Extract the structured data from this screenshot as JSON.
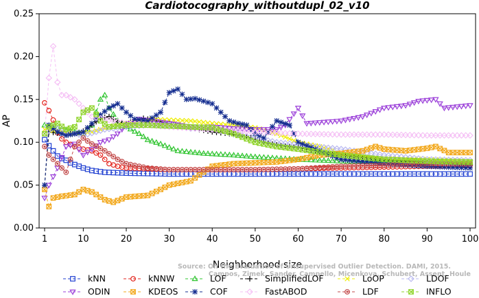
{
  "chart_data": {
    "type": "line",
    "title": "Cardiotocography_withoutdupl_02_v10",
    "xlabel": "Neighborhood size",
    "ylabel": "AP",
    "xlim": [
      1,
      100
    ],
    "ylim": [
      0.0,
      0.25
    ],
    "xticks": [
      1,
      10,
      20,
      30,
      40,
      50,
      60,
      70,
      80,
      90,
      100
    ],
    "yticks": [
      "0.00",
      "0.05",
      "0.10",
      "0.15",
      "0.20",
      "0.25"
    ],
    "grid": false,
    "legend_position": "bottom",
    "watermark": {
      "line1": "Source: On the Evaluation of Unsupervised Outlier Detection. DAMI, 2015.",
      "line2": "Campos, Zimek, Sander, Campello, Micenkova, Schubert, Assent, Houle"
    },
    "series": [
      {
        "name": "kNN",
        "color": "#1f3fd1",
        "marker": "square",
        "dash": "4,3",
        "points": [
          [
            1,
            0.103
          ],
          [
            2,
            0.096
          ],
          [
            3,
            0.09
          ],
          [
            4,
            0.084
          ],
          [
            5,
            0.081
          ],
          [
            6,
            0.079
          ],
          [
            7,
            0.076
          ],
          [
            8,
            0.074
          ],
          [
            10,
            0.07
          ],
          [
            12,
            0.067
          ],
          [
            15,
            0.065
          ],
          [
            20,
            0.064
          ],
          [
            30,
            0.063
          ],
          [
            40,
            0.063
          ],
          [
            50,
            0.063
          ],
          [
            60,
            0.063
          ],
          [
            70,
            0.063
          ],
          [
            80,
            0.063
          ],
          [
            90,
            0.063
          ],
          [
            100,
            0.063
          ]
        ]
      },
      {
        "name": "kNNW",
        "color": "#e3231c",
        "marker": "circle",
        "dash": "4,3",
        "points": [
          [
            1,
            0.146
          ],
          [
            2,
            0.137
          ],
          [
            3,
            0.126
          ],
          [
            4,
            0.111
          ],
          [
            5,
            0.104
          ],
          [
            6,
            0.1
          ],
          [
            8,
            0.095
          ],
          [
            10,
            0.092
          ],
          [
            12,
            0.09
          ],
          [
            14,
            0.085
          ],
          [
            16,
            0.075
          ],
          [
            18,
            0.072
          ],
          [
            20,
            0.07
          ],
          [
            25,
            0.069
          ],
          [
            30,
            0.068
          ],
          [
            40,
            0.068
          ],
          [
            50,
            0.068
          ],
          [
            60,
            0.069
          ],
          [
            70,
            0.07
          ],
          [
            80,
            0.071
          ],
          [
            90,
            0.072
          ],
          [
            100,
            0.073
          ]
        ]
      },
      {
        "name": "LOF",
        "color": "#2ec42e",
        "marker": "triangle-up",
        "dash": "4,3",
        "points": [
          [
            1,
            0.12
          ],
          [
            3,
            0.118
          ],
          [
            5,
            0.115
          ],
          [
            8,
            0.112
          ],
          [
            10,
            0.11
          ],
          [
            12,
            0.12
          ],
          [
            14,
            0.15
          ],
          [
            15,
            0.155
          ],
          [
            16,
            0.14
          ],
          [
            18,
            0.125
          ],
          [
            20,
            0.118
          ],
          [
            23,
            0.11
          ],
          [
            25,
            0.103
          ],
          [
            28,
            0.098
          ],
          [
            32,
            0.09
          ],
          [
            38,
            0.087
          ],
          [
            45,
            0.085
          ],
          [
            50,
            0.083
          ],
          [
            60,
            0.08
          ],
          [
            70,
            0.078
          ],
          [
            80,
            0.077
          ],
          [
            90,
            0.077
          ],
          [
            100,
            0.076
          ]
        ]
      },
      {
        "name": "SimplifiedLOF",
        "color": "#000000",
        "marker": "plus",
        "dash": "4,3",
        "points": [
          [
            1,
            0.05
          ],
          [
            2,
            0.112
          ],
          [
            5,
            0.11
          ],
          [
            8,
            0.11
          ],
          [
            10,
            0.113
          ],
          [
            12,
            0.12
          ],
          [
            14,
            0.128
          ],
          [
            16,
            0.13
          ],
          [
            18,
            0.124
          ],
          [
            20,
            0.122
          ],
          [
            24,
            0.128
          ],
          [
            28,
            0.124
          ],
          [
            32,
            0.12
          ],
          [
            36,
            0.116
          ],
          [
            40,
            0.112
          ],
          [
            44,
            0.11
          ],
          [
            48,
            0.107
          ],
          [
            52,
            0.1
          ],
          [
            56,
            0.096
          ],
          [
            60,
            0.094
          ],
          [
            64,
            0.09
          ],
          [
            70,
            0.085
          ],
          [
            80,
            0.08
          ],
          [
            90,
            0.077
          ],
          [
            100,
            0.075
          ]
        ]
      },
      {
        "name": "LoOP",
        "color": "#eeee00",
        "marker": "cross",
        "dash": "4,3",
        "points": [
          [
            1,
            0.115
          ],
          [
            4,
            0.113
          ],
          [
            8,
            0.11
          ],
          [
            12,
            0.112
          ],
          [
            16,
            0.118
          ],
          [
            20,
            0.122
          ],
          [
            26,
            0.127
          ],
          [
            30,
            0.126
          ],
          [
            35,
            0.125
          ],
          [
            40,
            0.122
          ],
          [
            45,
            0.12
          ],
          [
            50,
            0.117
          ],
          [
            55,
            0.11
          ],
          [
            60,
            0.1
          ],
          [
            65,
            0.095
          ],
          [
            70,
            0.088
          ],
          [
            80,
            0.082
          ],
          [
            90,
            0.08
          ],
          [
            100,
            0.078
          ]
        ]
      },
      {
        "name": "LDOF",
        "color": "#b8b8f0",
        "marker": "diamond",
        "dash": "4,3",
        "points": [
          [
            1,
            0.11
          ],
          [
            3,
            0.118
          ],
          [
            6,
            0.112
          ],
          [
            10,
            0.108
          ],
          [
            15,
            0.115
          ],
          [
            20,
            0.118
          ],
          [
            25,
            0.12
          ],
          [
            30,
            0.12
          ],
          [
            35,
            0.116
          ],
          [
            40,
            0.116
          ],
          [
            45,
            0.11
          ],
          [
            50,
            0.105
          ],
          [
            55,
            0.1
          ],
          [
            60,
            0.097
          ],
          [
            70,
            0.092
          ],
          [
            80,
            0.085
          ],
          [
            90,
            0.08
          ],
          [
            100,
            0.079
          ]
        ]
      },
      {
        "name": "ODIN",
        "color": "#9b3fd9",
        "marker": "triangle-down",
        "dash": "4,3",
        "points": [
          [
            1,
            0.035
          ],
          [
            2,
            0.05
          ],
          [
            4,
            0.07
          ],
          [
            6,
            0.095
          ],
          [
            8,
            0.098
          ],
          [
            10,
            0.085
          ],
          [
            12,
            0.092
          ],
          [
            14,
            0.1
          ],
          [
            16,
            0.103
          ],
          [
            18,
            0.11
          ],
          [
            20,
            0.12
          ],
          [
            23,
            0.127
          ],
          [
            26,
            0.125
          ],
          [
            30,
            0.122
          ],
          [
            35,
            0.118
          ],
          [
            40,
            0.118
          ],
          [
            45,
            0.116
          ],
          [
            50,
            0.115
          ],
          [
            55,
            0.115
          ],
          [
            57,
            0.12
          ],
          [
            60,
            0.14
          ],
          [
            62,
            0.122
          ],
          [
            70,
            0.125
          ],
          [
            75,
            0.13
          ],
          [
            80,
            0.14
          ],
          [
            85,
            0.143
          ],
          [
            88,
            0.148
          ],
          [
            92,
            0.15
          ],
          [
            94,
            0.14
          ],
          [
            100,
            0.143
          ]
        ]
      },
      {
        "name": "KDEOS",
        "color": "#f2a81c",
        "marker": "square-x",
        "dash": "4,3",
        "points": [
          [
            1,
            0.045
          ],
          [
            2,
            0.025
          ],
          [
            3,
            0.035
          ],
          [
            5,
            0.037
          ],
          [
            8,
            0.039
          ],
          [
            10,
            0.045
          ],
          [
            12,
            0.042
          ],
          [
            15,
            0.033
          ],
          [
            17,
            0.03
          ],
          [
            20,
            0.036
          ],
          [
            25,
            0.038
          ],
          [
            28,
            0.045
          ],
          [
            30,
            0.05
          ],
          [
            35,
            0.055
          ],
          [
            40,
            0.072
          ],
          [
            45,
            0.075
          ],
          [
            50,
            0.076
          ],
          [
            55,
            0.077
          ],
          [
            60,
            0.08
          ],
          [
            65,
            0.085
          ],
          [
            70,
            0.087
          ],
          [
            75,
            0.09
          ],
          [
            78,
            0.095
          ],
          [
            80,
            0.092
          ],
          [
            85,
            0.09
          ],
          [
            90,
            0.093
          ],
          [
            92,
            0.095
          ],
          [
            95,
            0.088
          ],
          [
            100,
            0.088
          ]
        ]
      },
      {
        "name": "COF",
        "color": "#132c8f",
        "marker": "star",
        "dash": "4,3",
        "points": [
          [
            1,
            0.05
          ],
          [
            2,
            0.12
          ],
          [
            4,
            0.112
          ],
          [
            6,
            0.108
          ],
          [
            8,
            0.11
          ],
          [
            10,
            0.112
          ],
          [
            12,
            0.122
          ],
          [
            14,
            0.132
          ],
          [
            16,
            0.14
          ],
          [
            18,
            0.145
          ],
          [
            20,
            0.135
          ],
          [
            22,
            0.127
          ],
          [
            25,
            0.125
          ],
          [
            28,
            0.135
          ],
          [
            30,
            0.158
          ],
          [
            32,
            0.162
          ],
          [
            34,
            0.15
          ],
          [
            36,
            0.151
          ],
          [
            40,
            0.145
          ],
          [
            42,
            0.135
          ],
          [
            44,
            0.125
          ],
          [
            46,
            0.122
          ],
          [
            48,
            0.12
          ],
          [
            50,
            0.11
          ],
          [
            52,
            0.105
          ],
          [
            55,
            0.125
          ],
          [
            58,
            0.12
          ],
          [
            60,
            0.1
          ],
          [
            65,
            0.09
          ],
          [
            70,
            0.08
          ],
          [
            80,
            0.075
          ],
          [
            90,
            0.072
          ],
          [
            100,
            0.07
          ]
        ]
      },
      {
        "name": "FastABOD",
        "color": "#f5c0f5",
        "marker": "diamond",
        "dash": "4,3",
        "points": [
          [
            1,
            0.11
          ],
          [
            2,
            0.175
          ],
          [
            3,
            0.212
          ],
          [
            4,
            0.17
          ],
          [
            5,
            0.155
          ],
          [
            6,
            0.155
          ],
          [
            8,
            0.15
          ],
          [
            10,
            0.14
          ],
          [
            12,
            0.13
          ],
          [
            15,
            0.127
          ],
          [
            20,
            0.122
          ],
          [
            25,
            0.12
          ],
          [
            30,
            0.118
          ],
          [
            40,
            0.115
          ],
          [
            50,
            0.112
          ],
          [
            60,
            0.11
          ],
          [
            70,
            0.109
          ],
          [
            80,
            0.109
          ],
          [
            90,
            0.108
          ],
          [
            100,
            0.108
          ]
        ]
      },
      {
        "name": "LDF",
        "color": "#c24a4a",
        "marker": "circle-dot",
        "dash": "4,3",
        "points": [
          [
            1,
            0.095
          ],
          [
            2,
            0.085
          ],
          [
            4,
            0.075
          ],
          [
            6,
            0.065
          ],
          [
            8,
            0.095
          ],
          [
            10,
            0.105
          ],
          [
            12,
            0.098
          ],
          [
            15,
            0.09
          ],
          [
            18,
            0.08
          ],
          [
            20,
            0.075
          ],
          [
            25,
            0.07
          ],
          [
            30,
            0.068
          ],
          [
            40,
            0.068
          ],
          [
            50,
            0.068
          ],
          [
            60,
            0.069
          ],
          [
            70,
            0.072
          ],
          [
            80,
            0.073
          ],
          [
            90,
            0.075
          ],
          [
            100,
            0.075
          ]
        ]
      },
      {
        "name": "INFLO",
        "color": "#8fd42a",
        "marker": "square-x",
        "dash": "4,3",
        "points": [
          [
            1,
            0.11
          ],
          [
            2,
            0.118
          ],
          [
            4,
            0.122
          ],
          [
            6,
            0.115
          ],
          [
            8,
            0.118
          ],
          [
            10,
            0.135
          ],
          [
            12,
            0.14
          ],
          [
            14,
            0.125
          ],
          [
            16,
            0.118
          ],
          [
            20,
            0.12
          ],
          [
            25,
            0.12
          ],
          [
            30,
            0.119
          ],
          [
            35,
            0.118
          ],
          [
            40,
            0.117
          ],
          [
            45,
            0.11
          ],
          [
            50,
            0.1
          ],
          [
            55,
            0.095
          ],
          [
            60,
            0.092
          ],
          [
            70,
            0.085
          ],
          [
            80,
            0.08
          ],
          [
            90,
            0.078
          ],
          [
            100,
            0.077
          ]
        ]
      }
    ]
  }
}
